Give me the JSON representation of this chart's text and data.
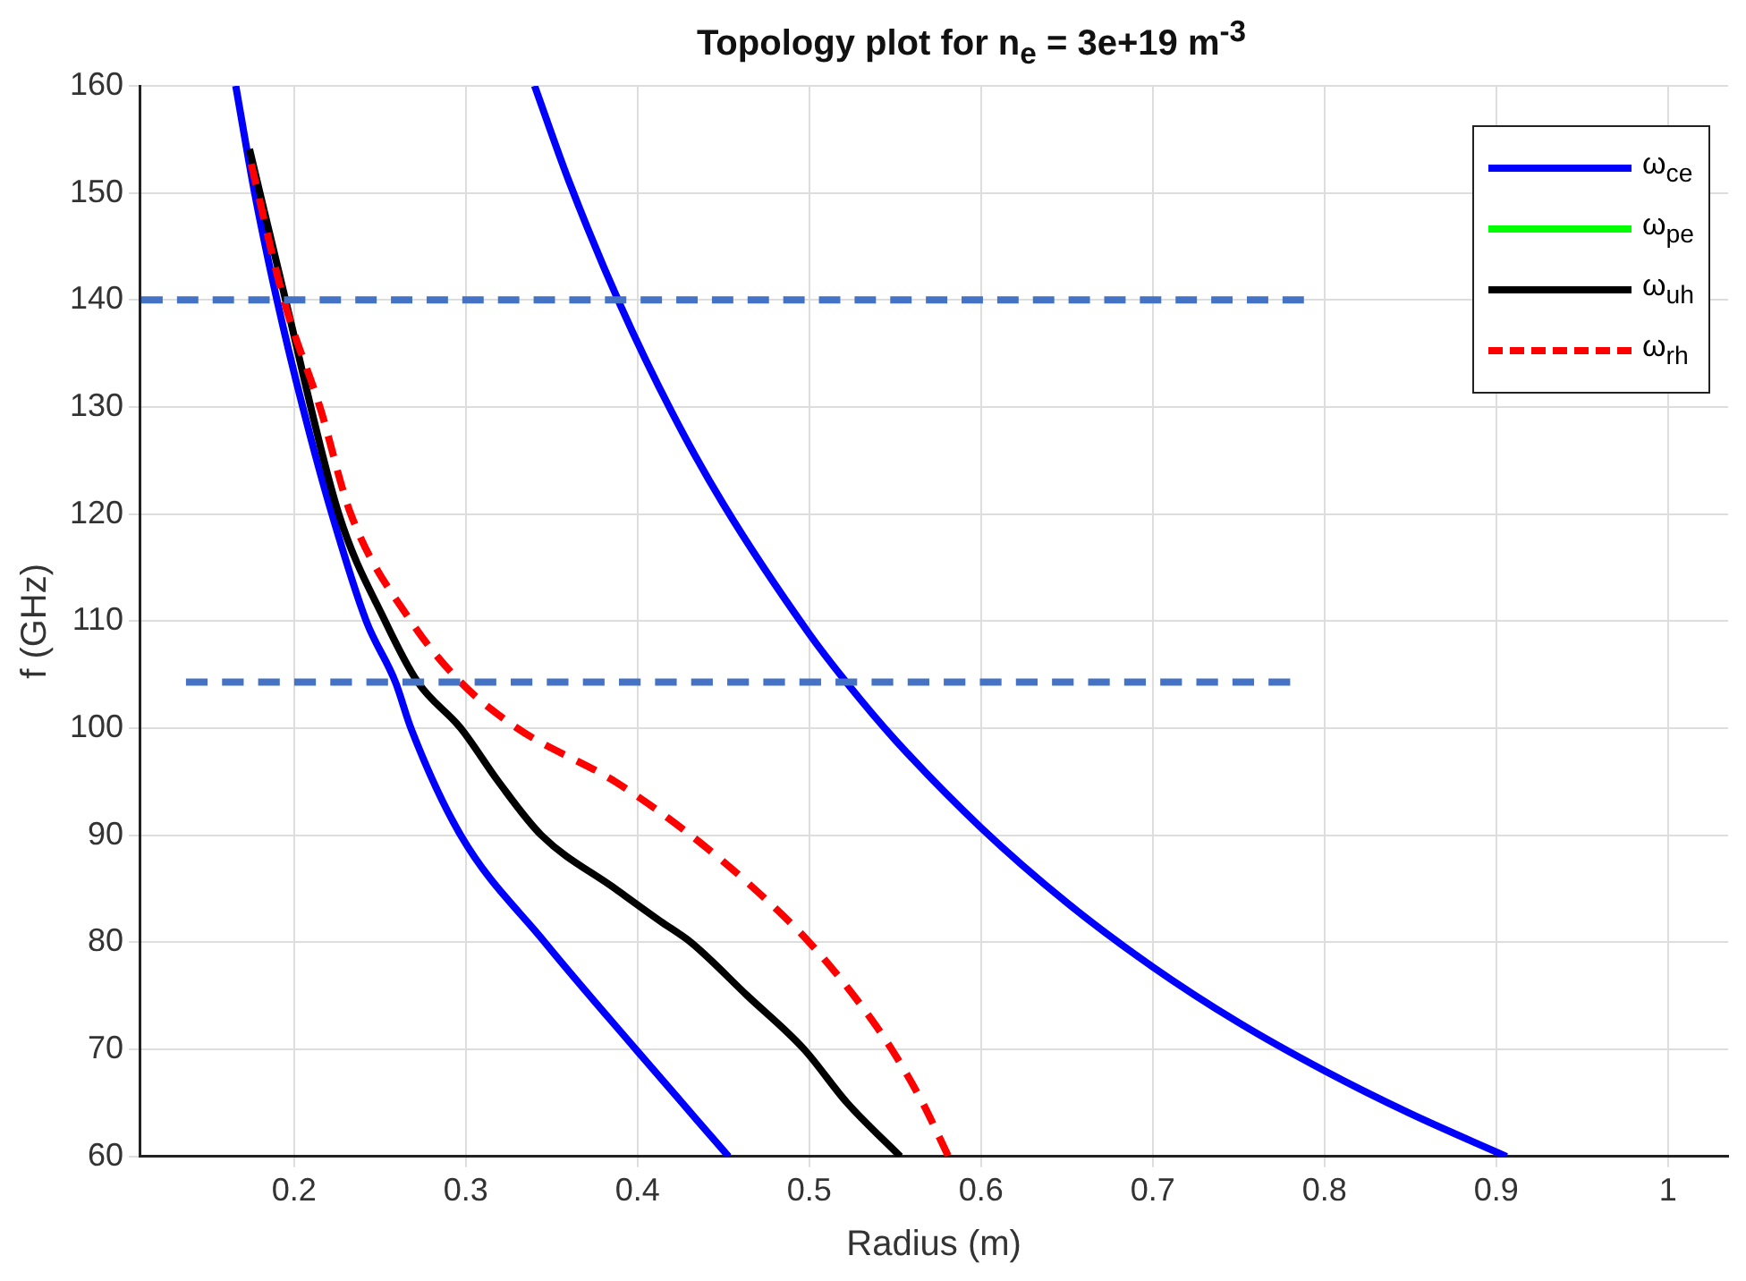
{
  "chart_data": {
    "type": "line",
    "title": "Topology plot for n$_{e}$ = 3e+19 m$^{-3}$",
    "xlabel": "Radius (m)",
    "ylabel": "f (GHz)",
    "xlim": [
      0.11,
      1.035
    ],
    "ylim": [
      60,
      160
    ],
    "xticks": [
      0.2,
      0.3,
      0.4,
      0.5,
      0.6,
      0.7,
      0.8,
      0.9,
      1
    ],
    "yticks": [
      60,
      70,
      80,
      90,
      100,
      110,
      120,
      130,
      140,
      150,
      160
    ],
    "grid": true,
    "legend": "top right",
    "marker": "none",
    "series": [
      {
        "name": "ω$_{ce}$",
        "color": "#0000ff",
        "x": [
          0.166,
          0.177,
          0.19,
          0.205,
          0.222,
          0.242,
          0.259,
          0.268,
          0.297,
          0.346,
          0.399,
          0.453
        ],
        "values": [
          160,
          150,
          140,
          130,
          120,
          110,
          104.3,
          100,
          90,
          80,
          70,
          60
        ]
      },
      {
        "name": "ω$_{pe}$",
        "color": "#00ff00"
      },
      {
        "name": "ω$_{uh}$",
        "color": "#000000",
        "x": [
          0.174,
          0.195,
          0.226,
          0.253,
          0.272,
          0.297,
          0.319,
          0.344,
          0.387,
          0.413,
          0.431,
          0.464,
          0.497,
          0.522,
          0.553
        ],
        "values": [
          154.1,
          140,
          120,
          110,
          104.3,
          100,
          95,
          90,
          85,
          82,
          80,
          75,
          70,
          65,
          60
        ]
      },
      {
        "name": "ω$_{rh}$",
        "color": "#ff0000",
        "line_style": "dashed",
        "x": [
          0.175,
          0.194,
          0.215,
          0.233,
          0.268,
          0.297,
          0.33,
          0.387,
          0.431,
          0.468,
          0.5,
          0.526,
          0.548,
          0.566,
          0.581
        ],
        "values": [
          152.7,
          140,
          130,
          120,
          110,
          104.3,
          100,
          95,
          90,
          85,
          80,
          75,
          70,
          65,
          60
        ]
      },
      {
        "color": "#0000ff",
        "x": [
          0.34,
          0.36,
          0.39,
          0.42,
          0.45,
          0.5,
          0.522,
          0.55,
          0.6,
          0.65,
          0.7,
          0.75,
          0.8,
          0.85,
          0.906
        ],
        "values": [
          160,
          151.1,
          139.5,
          129.5,
          120.9,
          108.8,
          104.2,
          98.9,
          90.7,
          83.7,
          77.7,
          72.5,
          68,
          64,
          60
        ]
      },
      {
        "color": "#4472c4",
        "line_style": "dashed",
        "x": [
          0.111,
          0.788
        ],
        "values": [
          140,
          140
        ]
      },
      {
        "color": "#4472c4",
        "line_style": "dashed",
        "x": [
          0.137,
          0.78
        ],
        "values": [
          104.3,
          104.3
        ]
      }
    ]
  }
}
